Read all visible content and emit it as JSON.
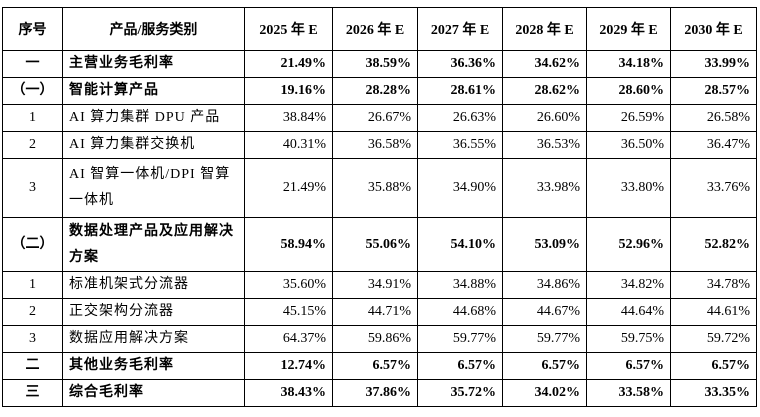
{
  "table": {
    "header": [
      "序号",
      "产品/服务类别",
      "2025 年 E",
      "2026 年 E",
      "2027 年 E",
      "2028 年 E",
      "2029 年 E",
      "2030 年 E"
    ],
    "rows": [
      {
        "bold": true,
        "cells": [
          "一",
          "主营业务毛利率",
          "21.49%",
          "38.59%",
          "36.36%",
          "34.62%",
          "34.18%",
          "33.99%"
        ]
      },
      {
        "bold": true,
        "cells": [
          "（一）",
          "智能计算产品",
          "19.16%",
          "28.28%",
          "28.61%",
          "28.62%",
          "28.60%",
          "28.57%"
        ]
      },
      {
        "bold": false,
        "cells": [
          "1",
          "AI 算力集群 DPU 产品",
          "38.84%",
          "26.67%",
          "26.63%",
          "26.60%",
          "26.59%",
          "26.58%"
        ]
      },
      {
        "bold": false,
        "cells": [
          "2",
          "AI 算力集群交换机",
          "40.31%",
          "36.58%",
          "36.55%",
          "36.53%",
          "36.50%",
          "36.47%"
        ]
      },
      {
        "bold": false,
        "cells": [
          "3",
          "AI 智算一体机/DPI 智算一体机",
          "21.49%",
          "35.88%",
          "34.90%",
          "33.98%",
          "33.80%",
          "33.76%"
        ]
      },
      {
        "bold": true,
        "cells": [
          "（二）",
          "数据处理产品及应用解决方案",
          "58.94%",
          "55.06%",
          "54.10%",
          "53.09%",
          "52.96%",
          "52.82%"
        ]
      },
      {
        "bold": false,
        "cells": [
          "1",
          "标准机架式分流器",
          "35.60%",
          "34.91%",
          "34.88%",
          "34.86%",
          "34.82%",
          "34.78%"
        ]
      },
      {
        "bold": false,
        "cells": [
          "2",
          "正交架构分流器",
          "45.15%",
          "44.71%",
          "44.68%",
          "44.67%",
          "44.64%",
          "44.61%"
        ]
      },
      {
        "bold": false,
        "cells": [
          "3",
          "数据应用解决方案",
          "64.37%",
          "59.86%",
          "59.77%",
          "59.77%",
          "59.75%",
          "59.72%"
        ]
      },
      {
        "bold": true,
        "cells": [
          "二",
          "其他业务毛利率",
          "12.74%",
          "6.57%",
          "6.57%",
          "6.57%",
          "6.57%",
          "6.57%"
        ]
      },
      {
        "bold": true,
        "cells": [
          "三",
          "综合毛利率",
          "38.43%",
          "37.86%",
          "35.72%",
          "34.02%",
          "33.58%",
          "33.35%"
        ]
      }
    ]
  }
}
